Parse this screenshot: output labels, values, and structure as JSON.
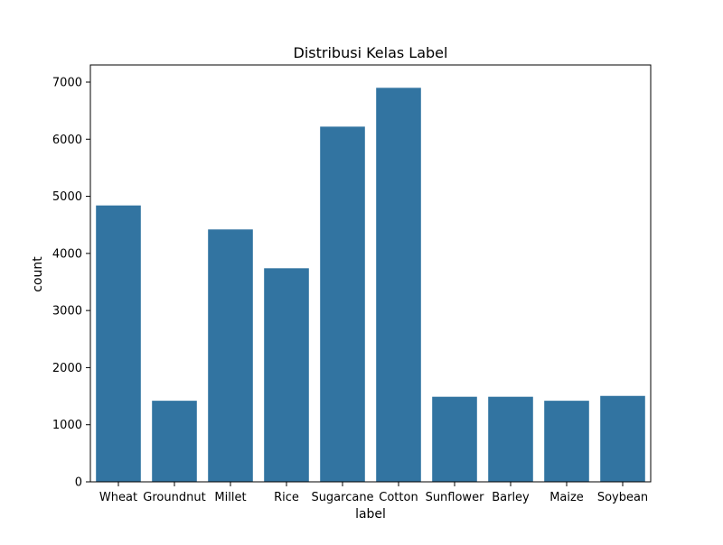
{
  "colors": {
    "bar": "#3274a1",
    "axis": "#000000",
    "background": "#ffffff"
  },
  "chart_data": {
    "type": "bar",
    "title": "Distribusi Kelas Label",
    "xlabel": "label",
    "ylabel": "count",
    "categories": [
      "Wheat",
      "Groundnut",
      "Millet",
      "Rice",
      "Sugarcane",
      "Cotton",
      "Sunflower",
      "Barley",
      "Maize",
      "Soybean"
    ],
    "values": [
      4840,
      1420,
      4420,
      3740,
      6220,
      6900,
      1490,
      1490,
      1420,
      1505
    ],
    "ylim": [
      0,
      7300
    ],
    "yticks": [
      0,
      1000,
      2000,
      3000,
      4000,
      5000,
      6000,
      7000
    ],
    "grid": false,
    "legend": "none"
  }
}
